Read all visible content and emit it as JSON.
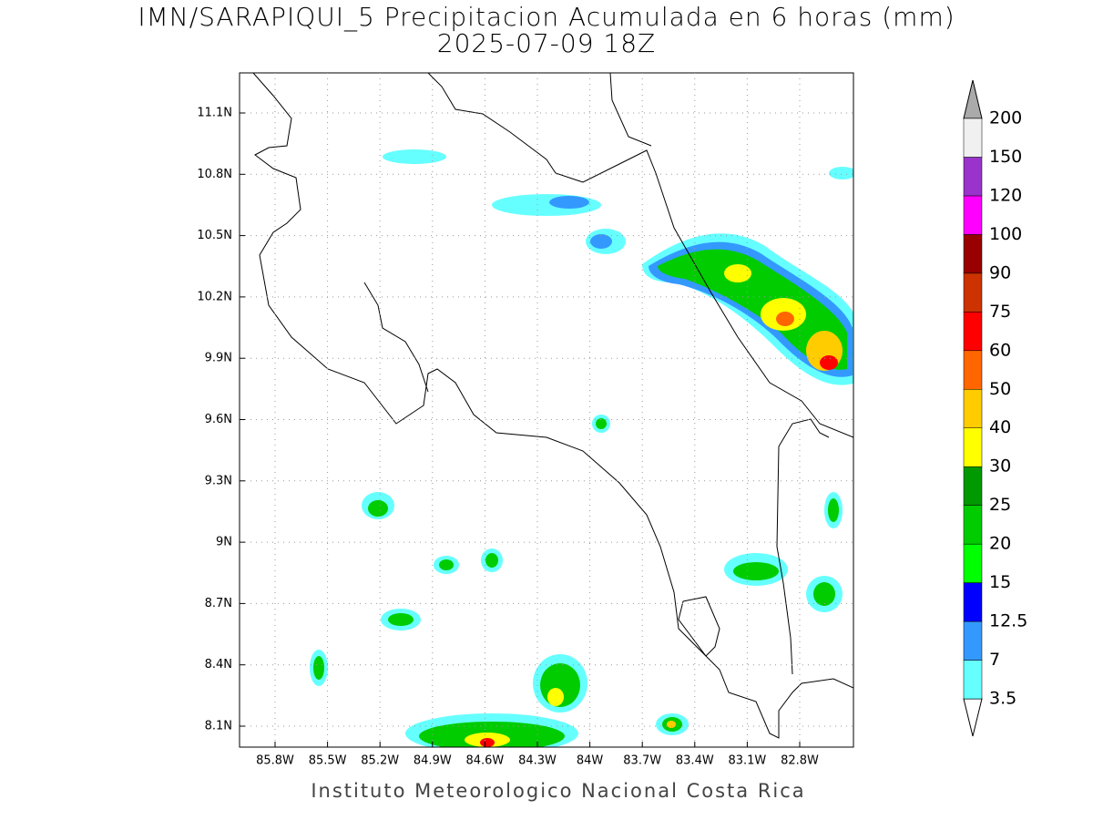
{
  "header": {
    "title": "IMN/SARAPIQUI_5 Precipitacion Acumulada en 6 horas (mm)",
    "subtitle": "2025-07-09 18Z"
  },
  "map": {
    "lon_labels": [
      "85.8W",
      "85.5W",
      "85.2W",
      "84.9W",
      "84.6W",
      "84.3W",
      "84W",
      "83.7W",
      "83.4W",
      "83.1W",
      "82.8W"
    ],
    "lat_labels": [
      "11.1N",
      "10.8N",
      "10.5N",
      "10.2N",
      "9.9N",
      "9.6N",
      "9.3N",
      "9N",
      "8.7N",
      "8.4N",
      "8.1N"
    ],
    "grid": true
  },
  "colorbar": {
    "levels": [
      3.5,
      7,
      12.5,
      15,
      20,
      25,
      30,
      40,
      50,
      60,
      75,
      90,
      100,
      120,
      150,
      200
    ],
    "colors": [
      "#66ffff",
      "#3399ff",
      "#0000ff",
      "#00ff00",
      "#00cc00",
      "#009900",
      "#ffff00",
      "#ffcc00",
      "#ff6600",
      "#ff0000",
      "#cc3300",
      "#990000",
      "#ff00ff",
      "#9933cc",
      "#f0f0f0"
    ],
    "over_color": "#aaaaaa",
    "under_color": "#ffffff"
  },
  "footer": "Instituto Meteorologico Nacional Costa Rica"
}
